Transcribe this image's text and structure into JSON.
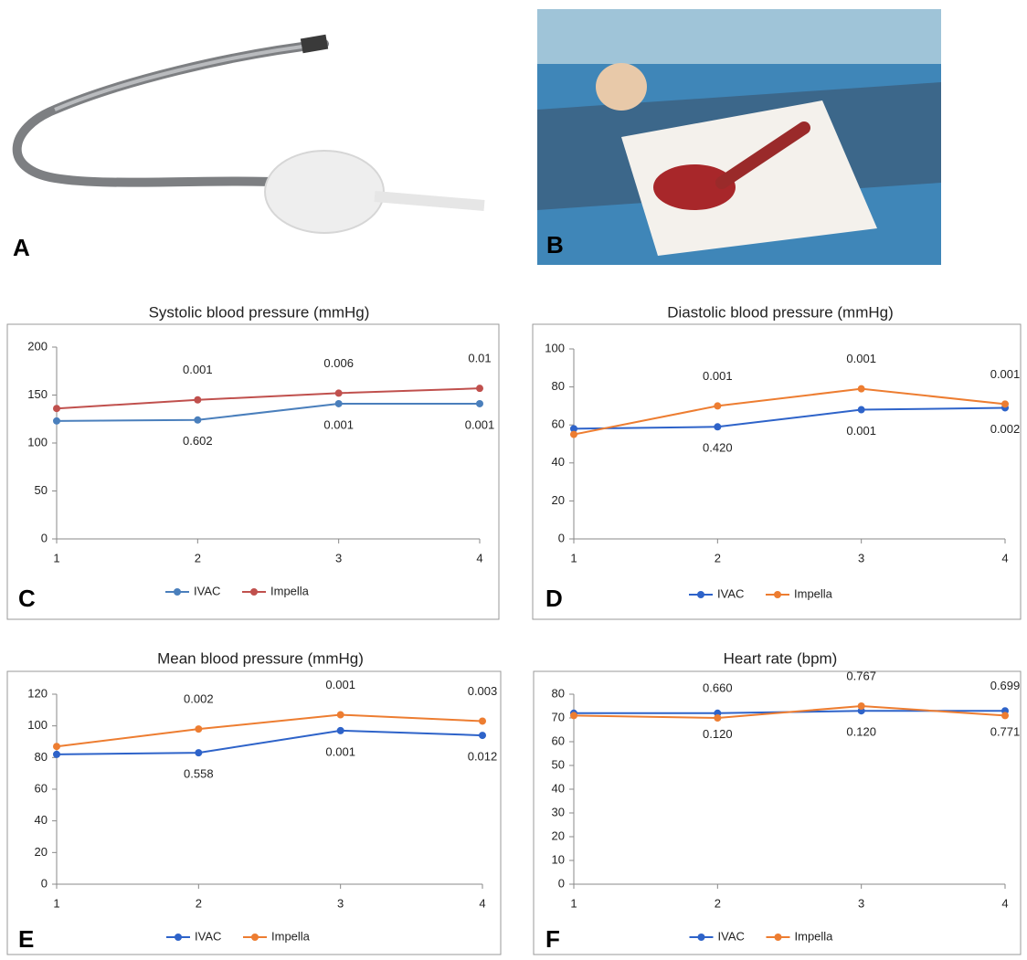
{
  "photos": [
    {
      "panel": "A"
    },
    {
      "panel": "B"
    }
  ],
  "chart_data": [
    {
      "type": "line",
      "panel": "C",
      "title": "Systolic blood pressure (mmHg)",
      "x": [
        1,
        2,
        3,
        4
      ],
      "xlim": [
        1,
        4
      ],
      "xticks": [
        1,
        2,
        3,
        4
      ],
      "ylim": [
        0,
        200
      ],
      "yticks": [
        0,
        50,
        100,
        150,
        200
      ],
      "series": [
        {
          "name": "IVAC",
          "color": "#4a7fbc",
          "values": [
            123,
            124,
            141,
            141
          ],
          "annotations": [
            null,
            "0.602",
            "0.001",
            "0.001"
          ]
        },
        {
          "name": "Impella",
          "color": "#c0504d",
          "values": [
            136,
            145,
            152,
            157
          ],
          "annotations": [
            null,
            "0.001",
            "0.006",
            "0.01"
          ]
        }
      ]
    },
    {
      "type": "line",
      "panel": "D",
      "title": "Diastolic blood pressure (mmHg)",
      "x": [
        1,
        2,
        3,
        4
      ],
      "xlim": [
        1,
        4
      ],
      "xticks": [
        1,
        2,
        3,
        4
      ],
      "ylim": [
        0,
        100
      ],
      "yticks": [
        0,
        20,
        40,
        60,
        80,
        100
      ],
      "series": [
        {
          "name": "IVAC",
          "color": "#2e63c9",
          "values": [
            58,
            59,
            68,
            69
          ],
          "annotations": [
            null,
            "0.420",
            "0.001",
            "0.002"
          ]
        },
        {
          "name": "Impella",
          "color": "#ed7d31",
          "values": [
            55,
            70,
            79,
            71
          ],
          "annotations": [
            null,
            "0.001",
            "0.001",
            "0.001"
          ]
        }
      ]
    },
    {
      "type": "line",
      "panel": "E",
      "title": "Mean blood pressure (mmHg)",
      "x": [
        1,
        2,
        3,
        4
      ],
      "xlim": [
        1,
        4
      ],
      "xticks": [
        1,
        2,
        3,
        4
      ],
      "ylim": [
        0,
        120
      ],
      "yticks": [
        0,
        20,
        40,
        60,
        80,
        100,
        120
      ],
      "series": [
        {
          "name": "IVAC",
          "color": "#2e63c9",
          "values": [
            82,
            83,
            97,
            94
          ],
          "annotations": [
            null,
            "0.558",
            "0.001",
            "0.012"
          ]
        },
        {
          "name": "Impella",
          "color": "#ed7d31",
          "values": [
            87,
            98,
            107,
            103
          ],
          "annotations": [
            null,
            "0.002",
            "0.001",
            "0.003"
          ]
        }
      ]
    },
    {
      "type": "line",
      "panel": "F",
      "title": "Heart rate (bpm)",
      "x": [
        1,
        2,
        3,
        4
      ],
      "xlim": [
        1,
        4
      ],
      "xticks": [
        1,
        2,
        3,
        4
      ],
      "ylim": [
        0,
        80
      ],
      "yticks": [
        0,
        10,
        20,
        30,
        40,
        50,
        60,
        70,
        80
      ],
      "series": [
        {
          "name": "IVAC",
          "color": "#2e63c9",
          "values": [
            72,
            72,
            73,
            73
          ],
          "annotations": [
            null,
            "0.120",
            "0.120",
            "0.771"
          ]
        },
        {
          "name": "Impella",
          "color": "#ed7d31",
          "values": [
            71,
            70,
            75,
            71
          ],
          "annotations": [
            null,
            "0.660",
            "0.767",
            "0.699"
          ]
        }
      ]
    }
  ]
}
